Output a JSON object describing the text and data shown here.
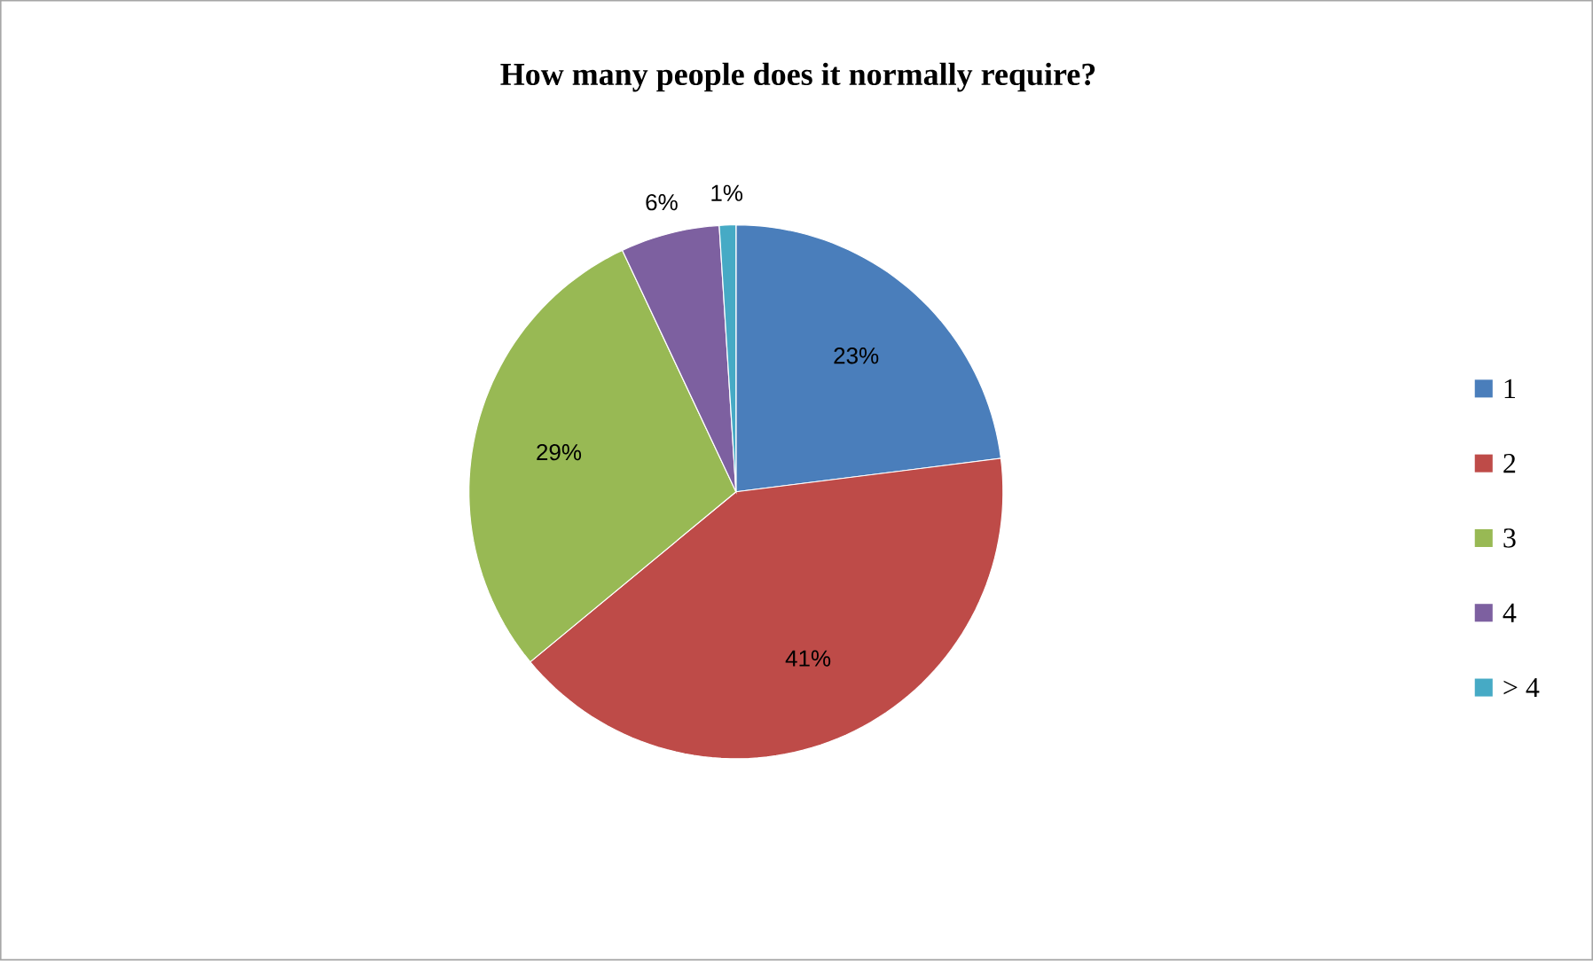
{
  "chart_data": {
    "type": "pie",
    "title": "How many people does it normally require?",
    "categories": [
      "1",
      "2",
      "3",
      "4",
      "> 4"
    ],
    "values": [
      23,
      41,
      29,
      6,
      1
    ],
    "value_labels": [
      "23%",
      "41%",
      "29%",
      "6%",
      "1%"
    ],
    "colors": [
      "#4a7ebb",
      "#be4b48",
      "#98b954",
      "#7d60a0",
      "#46aac5"
    ],
    "legend": "right"
  }
}
